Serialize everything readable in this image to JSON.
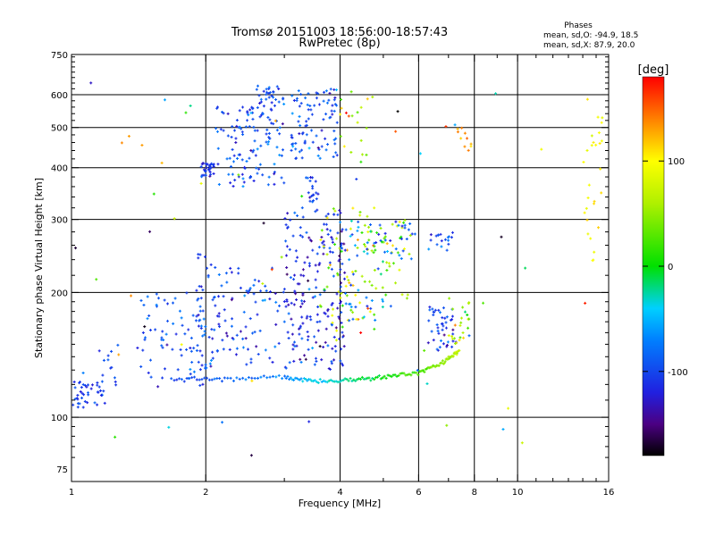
{
  "chart_data": {
    "type": "scatter",
    "title": "Tromsø 20151003 18:56:00-18:57:43",
    "subtitle": "RwPretec (8p)",
    "xlabel": "Frequency [MHz]",
    "ylabel": "Stationary phase Virtual Height [km]",
    "x_scale": "log",
    "y_scale": "log",
    "xlim": [
      1,
      16
    ],
    "ylim": [
      70,
      750
    ],
    "x_ticks": [
      1,
      2,
      4,
      6,
      8,
      10,
      16
    ],
    "x_ticklabels": [
      "1",
      "2",
      "4",
      "6",
      "8",
      "10",
      "16"
    ],
    "x_minor_ticks": [
      3,
      5,
      7,
      9,
      11,
      12,
      13,
      14,
      15
    ],
    "y_ticks": [
      75,
      100,
      200,
      300,
      400,
      500,
      600,
      750
    ],
    "y_ticklabels": [
      "75",
      "100",
      "200",
      "300",
      "400",
      "500",
      "600",
      "750"
    ],
    "grid": true,
    "grid_x": [
      2,
      4,
      6,
      8,
      10
    ],
    "grid_y": [
      100,
      200,
      300,
      400,
      500,
      600
    ],
    "phases_box": {
      "title": "Phases",
      "line_o": "mean, sd,O: -94.9, 18.5",
      "line_x": "mean, sd,X:  87.9, 20.0"
    },
    "colorbar": {
      "label": "[deg]",
      "range": [
        -180,
        180
      ],
      "ticks": [
        100,
        0,
        -100
      ],
      "ticklabels": [
        "100",
        "0",
        "-100"
      ]
    },
    "colormap_stops": [
      {
        "v": -180,
        "color": "#000000"
      },
      {
        "v": -150,
        "color": "#4b0082"
      },
      {
        "v": -120,
        "color": "#2020e0"
      },
      {
        "v": -70,
        "color": "#0080ff"
      },
      {
        "v": -40,
        "color": "#00d0ff"
      },
      {
        "v": 0,
        "color": "#00e000"
      },
      {
        "v": 60,
        "color": "#b0f000"
      },
      {
        "v": 100,
        "color": "#ffff00"
      },
      {
        "v": 130,
        "color": "#ffa000"
      },
      {
        "v": 180,
        "color": "#ff0000"
      }
    ],
    "clusters": [
      {
        "f": [
          1.0,
          1.18
        ],
        "h": [
          105,
          122
        ],
        "phase": [
          -105,
          12
        ],
        "n": 40
      },
      {
        "f": [
          1.15,
          1.3
        ],
        "h": [
          108,
          150
        ],
        "phase": [
          -100,
          15
        ],
        "n": 14
      },
      {
        "f": [
          1.4,
          2.0
        ],
        "h": [
          118,
          200
        ],
        "phase": [
          -95,
          15
        ],
        "n": 70
      },
      {
        "f": [
          1.9,
          2.1
        ],
        "h": [
          130,
          250
        ],
        "phase": [
          -100,
          15
        ],
        "n": 45
      },
      {
        "f": [
          1.95,
          2.1
        ],
        "h": [
          380,
          410
        ],
        "phase": [
          -110,
          12
        ],
        "n": 35
      },
      {
        "f": [
          2.1,
          3.0
        ],
        "h": [
          360,
          560
        ],
        "phase": [
          -95,
          18
        ],
        "n": 120
      },
      {
        "f": [
          2.6,
          3.0
        ],
        "h": [
          560,
          630
        ],
        "phase": [
          -90,
          18
        ],
        "n": 30
      },
      {
        "f": [
          3.1,
          3.95
        ],
        "h": [
          420,
          620
        ],
        "phase": [
          -95,
          18
        ],
        "n": 90
      },
      {
        "f": [
          3.35,
          3.6
        ],
        "h": [
          330,
          380
        ],
        "phase": [
          -100,
          15
        ],
        "n": 20
      },
      {
        "f": [
          2.1,
          3.0
        ],
        "h": [
          135,
          230
        ],
        "phase": [
          -100,
          18
        ],
        "n": 80
      },
      {
        "f": [
          3.0,
          4.1
        ],
        "h": [
          130,
          320
        ],
        "phase": [
          -115,
          20
        ],
        "n": 200
      },
      {
        "f": [
          3.6,
          4.8
        ],
        "h": [
          150,
          320
        ],
        "phase": [
          70,
          40
        ],
        "n": 70
      },
      {
        "f": [
          4.0,
          5.0
        ],
        "h": [
          170,
          300
        ],
        "phase": [
          -70,
          30
        ],
        "n": 50
      },
      {
        "f": [
          4.5,
          5.8
        ],
        "h": [
          190,
          300
        ],
        "phase": [
          60,
          30
        ],
        "n": 40
      },
      {
        "f": [
          5.0,
          5.9
        ],
        "h": [
          240,
          300
        ],
        "phase": [
          -90,
          20
        ],
        "n": 20
      },
      {
        "f": [
          6.3,
          7.3
        ],
        "h": [
          250,
          280
        ],
        "phase": [
          -90,
          15
        ],
        "n": 18
      },
      {
        "f": [
          6.3,
          7.3
        ],
        "h": [
          145,
          185
        ],
        "phase": [
          -105,
          18
        ],
        "n": 45
      },
      {
        "f": [
          7.0,
          7.8
        ],
        "h": [
          140,
          200
        ],
        "phase": [
          60,
          35
        ],
        "n": 25
      },
      {
        "f": [
          4.0,
          4.8
        ],
        "h": [
          410,
          620
        ],
        "phase": [
          80,
          50
        ],
        "n": 18
      },
      {
        "f": [
          7.3,
          8.0
        ],
        "h": [
          430,
          500
        ],
        "phase": [
          130,
          10
        ],
        "n": 10
      },
      {
        "f": [
          14.0,
          15.5
        ],
        "h": [
          230,
          600
        ],
        "phase": [
          100,
          12
        ],
        "n": 28
      },
      {
        "f": [
          1.0,
          15.0
        ],
        "h": [
          80,
          700
        ],
        "phase": [
          0,
          100
        ],
        "n": 70
      }
    ],
    "traces": [
      {
        "f": [
          1.7,
          2.2,
          3.0,
          3.5,
          4.2,
          5.0,
          6.0,
          6.8,
          7.4
        ],
        "h": [
          123,
          124,
          125,
          122,
          123,
          125,
          128,
          135,
          145
        ],
        "phase_start": -110,
        "phase_end": 70,
        "n": 160
      }
    ]
  }
}
